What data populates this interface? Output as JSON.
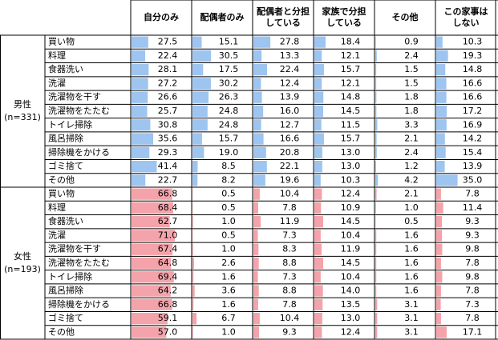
{
  "table": {
    "columns": [
      [
        "自分のみ"
      ],
      [
        "配偶者のみ"
      ],
      [
        "配偶者と分担",
        "している"
      ],
      [
        "家族で分担",
        "している"
      ],
      [
        "その他"
      ],
      [
        "この家事は",
        "しない"
      ]
    ],
    "groups": [
      {
        "label": "男性",
        "n": "(n=331)",
        "color": "#9ec4f0",
        "rows": [
          {
            "label": "買い物",
            "values": [
              27.5,
              15.1,
              27.8,
              18.4,
              0.9,
              10.3
            ],
            "value_labels": [
              "27.5",
              "15.1",
              "27.8",
              "18.4",
              "0.9",
              "10.3"
            ]
          },
          {
            "label": "料理",
            "values": [
              22.4,
              30.5,
              13.3,
              12.1,
              2.4,
              19.3
            ],
            "value_labels": [
              "22.4",
              "30.5",
              "13.3",
              "12.1",
              "2.4",
              "19.3"
            ]
          },
          {
            "label": "食器洗い",
            "values": [
              28.1,
              17.5,
              22.4,
              15.7,
              1.5,
              14.8
            ],
            "value_labels": [
              "28.1",
              "17.5",
              "22.4",
              "15.7",
              "1.5",
              "14.8"
            ]
          },
          {
            "label": "洗濯",
            "values": [
              27.2,
              30.2,
              12.4,
              12.1,
              1.5,
              16.6
            ],
            "value_labels": [
              "27.2",
              "30.2",
              "12.4",
              "12.1",
              "1.5",
              "16.6"
            ]
          },
          {
            "label": "洗濯物を干す",
            "values": [
              26.6,
              26.3,
              13.9,
              14.8,
              1.8,
              16.6
            ],
            "value_labels": [
              "26.6",
              "26.3",
              "13.9",
              "14.8",
              "1.8",
              "16.6"
            ]
          },
          {
            "label": "洗濯物をたたむ",
            "values": [
              25.7,
              24.8,
              16.0,
              14.5,
              1.8,
              17.2
            ],
            "value_labels": [
              "25.7",
              "24.8",
              "16.0",
              "14.5",
              "1.8",
              "17.2"
            ]
          },
          {
            "label": "トイレ掃除",
            "values": [
              30.8,
              24.8,
              12.7,
              11.5,
              3.3,
              16.9
            ],
            "value_labels": [
              "30.8",
              "24.8",
              "12.7",
              "11.5",
              "3.3",
              "16.9"
            ]
          },
          {
            "label": "風呂掃除",
            "values": [
              35.6,
              15.7,
              16.6,
              15.7,
              2.1,
              14.2
            ],
            "value_labels": [
              "35.6",
              "15.7",
              "16.6",
              "15.7",
              "2.1",
              "14.2"
            ]
          },
          {
            "label": "掃除機をかける",
            "values": [
              29.3,
              19.0,
              20.8,
              13.0,
              2.4,
              15.4
            ],
            "value_labels": [
              "29.3",
              "19.0",
              "20.8",
              "13.0",
              "2.4",
              "15.4"
            ]
          },
          {
            "label": "ゴミ捨て",
            "values": [
              41.4,
              8.5,
              22.1,
              13.0,
              1.2,
              13.9
            ],
            "value_labels": [
              "41.4",
              "8.5",
              "22.1",
              "13.0",
              "1.2",
              "13.9"
            ]
          },
          {
            "label": "その他",
            "values": [
              22.7,
              8.2,
              19.6,
              10.3,
              4.2,
              35.0
            ],
            "value_labels": [
              "22.7",
              "8.2",
              "19.6",
              "10.3",
              "4.2",
              "35.0"
            ]
          }
        ]
      },
      {
        "label": "女性",
        "n": "(n=193)",
        "color": "#f4a3aa",
        "rows": [
          {
            "label": "買い物",
            "values": [
              66.8,
              0.5,
              10.4,
              12.4,
              2.1,
              7.8
            ],
            "value_labels": [
              "66.8",
              "0.5",
              "10.4",
              "12.4",
              "2.1",
              "7.8"
            ]
          },
          {
            "label": "料理",
            "values": [
              68.4,
              0.5,
              7.8,
              10.9,
              1.0,
              11.4
            ],
            "value_labels": [
              "68.4",
              "0.5",
              "7.8",
              "10.9",
              "1.0",
              "11.4"
            ]
          },
          {
            "label": "食器洗い",
            "values": [
              62.7,
              1.0,
              11.9,
              14.5,
              0.5,
              9.3
            ],
            "value_labels": [
              "62.7",
              "1.0",
              "11.9",
              "14.5",
              "0.5",
              "9.3"
            ]
          },
          {
            "label": "洗濯",
            "values": [
              71.0,
              0.5,
              7.3,
              10.4,
              1.6,
              9.3
            ],
            "value_labels": [
              "71.0",
              "0.5",
              "7.3",
              "10.4",
              "1.6",
              "9.3"
            ]
          },
          {
            "label": "洗濯物を干す",
            "values": [
              67.4,
              1.0,
              8.3,
              11.9,
              1.6,
              9.8
            ],
            "value_labels": [
              "67.4",
              "1.0",
              "8.3",
              "11.9",
              "1.6",
              "9.8"
            ]
          },
          {
            "label": "洗濯物をたたむ",
            "values": [
              64.8,
              2.6,
              8.8,
              14.5,
              1.6,
              7.8
            ],
            "value_labels": [
              "64.8",
              "2.6",
              "8.8",
              "14.5",
              "1.6",
              "7.8"
            ]
          },
          {
            "label": "トイレ掃除",
            "values": [
              69.4,
              1.6,
              7.3,
              10.4,
              1.6,
              9.8
            ],
            "value_labels": [
              "69.4",
              "1.6",
              "7.3",
              "10.4",
              "1.6",
              "9.8"
            ]
          },
          {
            "label": "風呂掃除",
            "values": [
              64.2,
              3.6,
              8.8,
              14.0,
              1.6,
              7.8
            ],
            "value_labels": [
              "64.2",
              "3.6",
              "8.8",
              "14.0",
              "1.6",
              "7.8"
            ]
          },
          {
            "label": "掃除機をかける",
            "values": [
              66.8,
              1.6,
              7.8,
              13.5,
              3.1,
              7.3
            ],
            "value_labels": [
              "66.8",
              "1.6",
              "7.8",
              "13.5",
              "3.1",
              "7.3"
            ]
          },
          {
            "label": "ゴミ捨て",
            "values": [
              59.1,
              6.7,
              10.4,
              13.0,
              3.1,
              7.8
            ],
            "value_labels": [
              "59.1",
              "6.7",
              "10.4",
              "13.0",
              "3.1",
              "7.8"
            ]
          },
          {
            "label": "その他",
            "values": [
              57.0,
              1.0,
              9.3,
              12.4,
              3.1,
              17.1
            ],
            "value_labels": [
              "57.0",
              "1.0",
              "9.3",
              "12.4",
              "3.1",
              "17.1"
            ]
          }
        ]
      }
    ]
  }
}
